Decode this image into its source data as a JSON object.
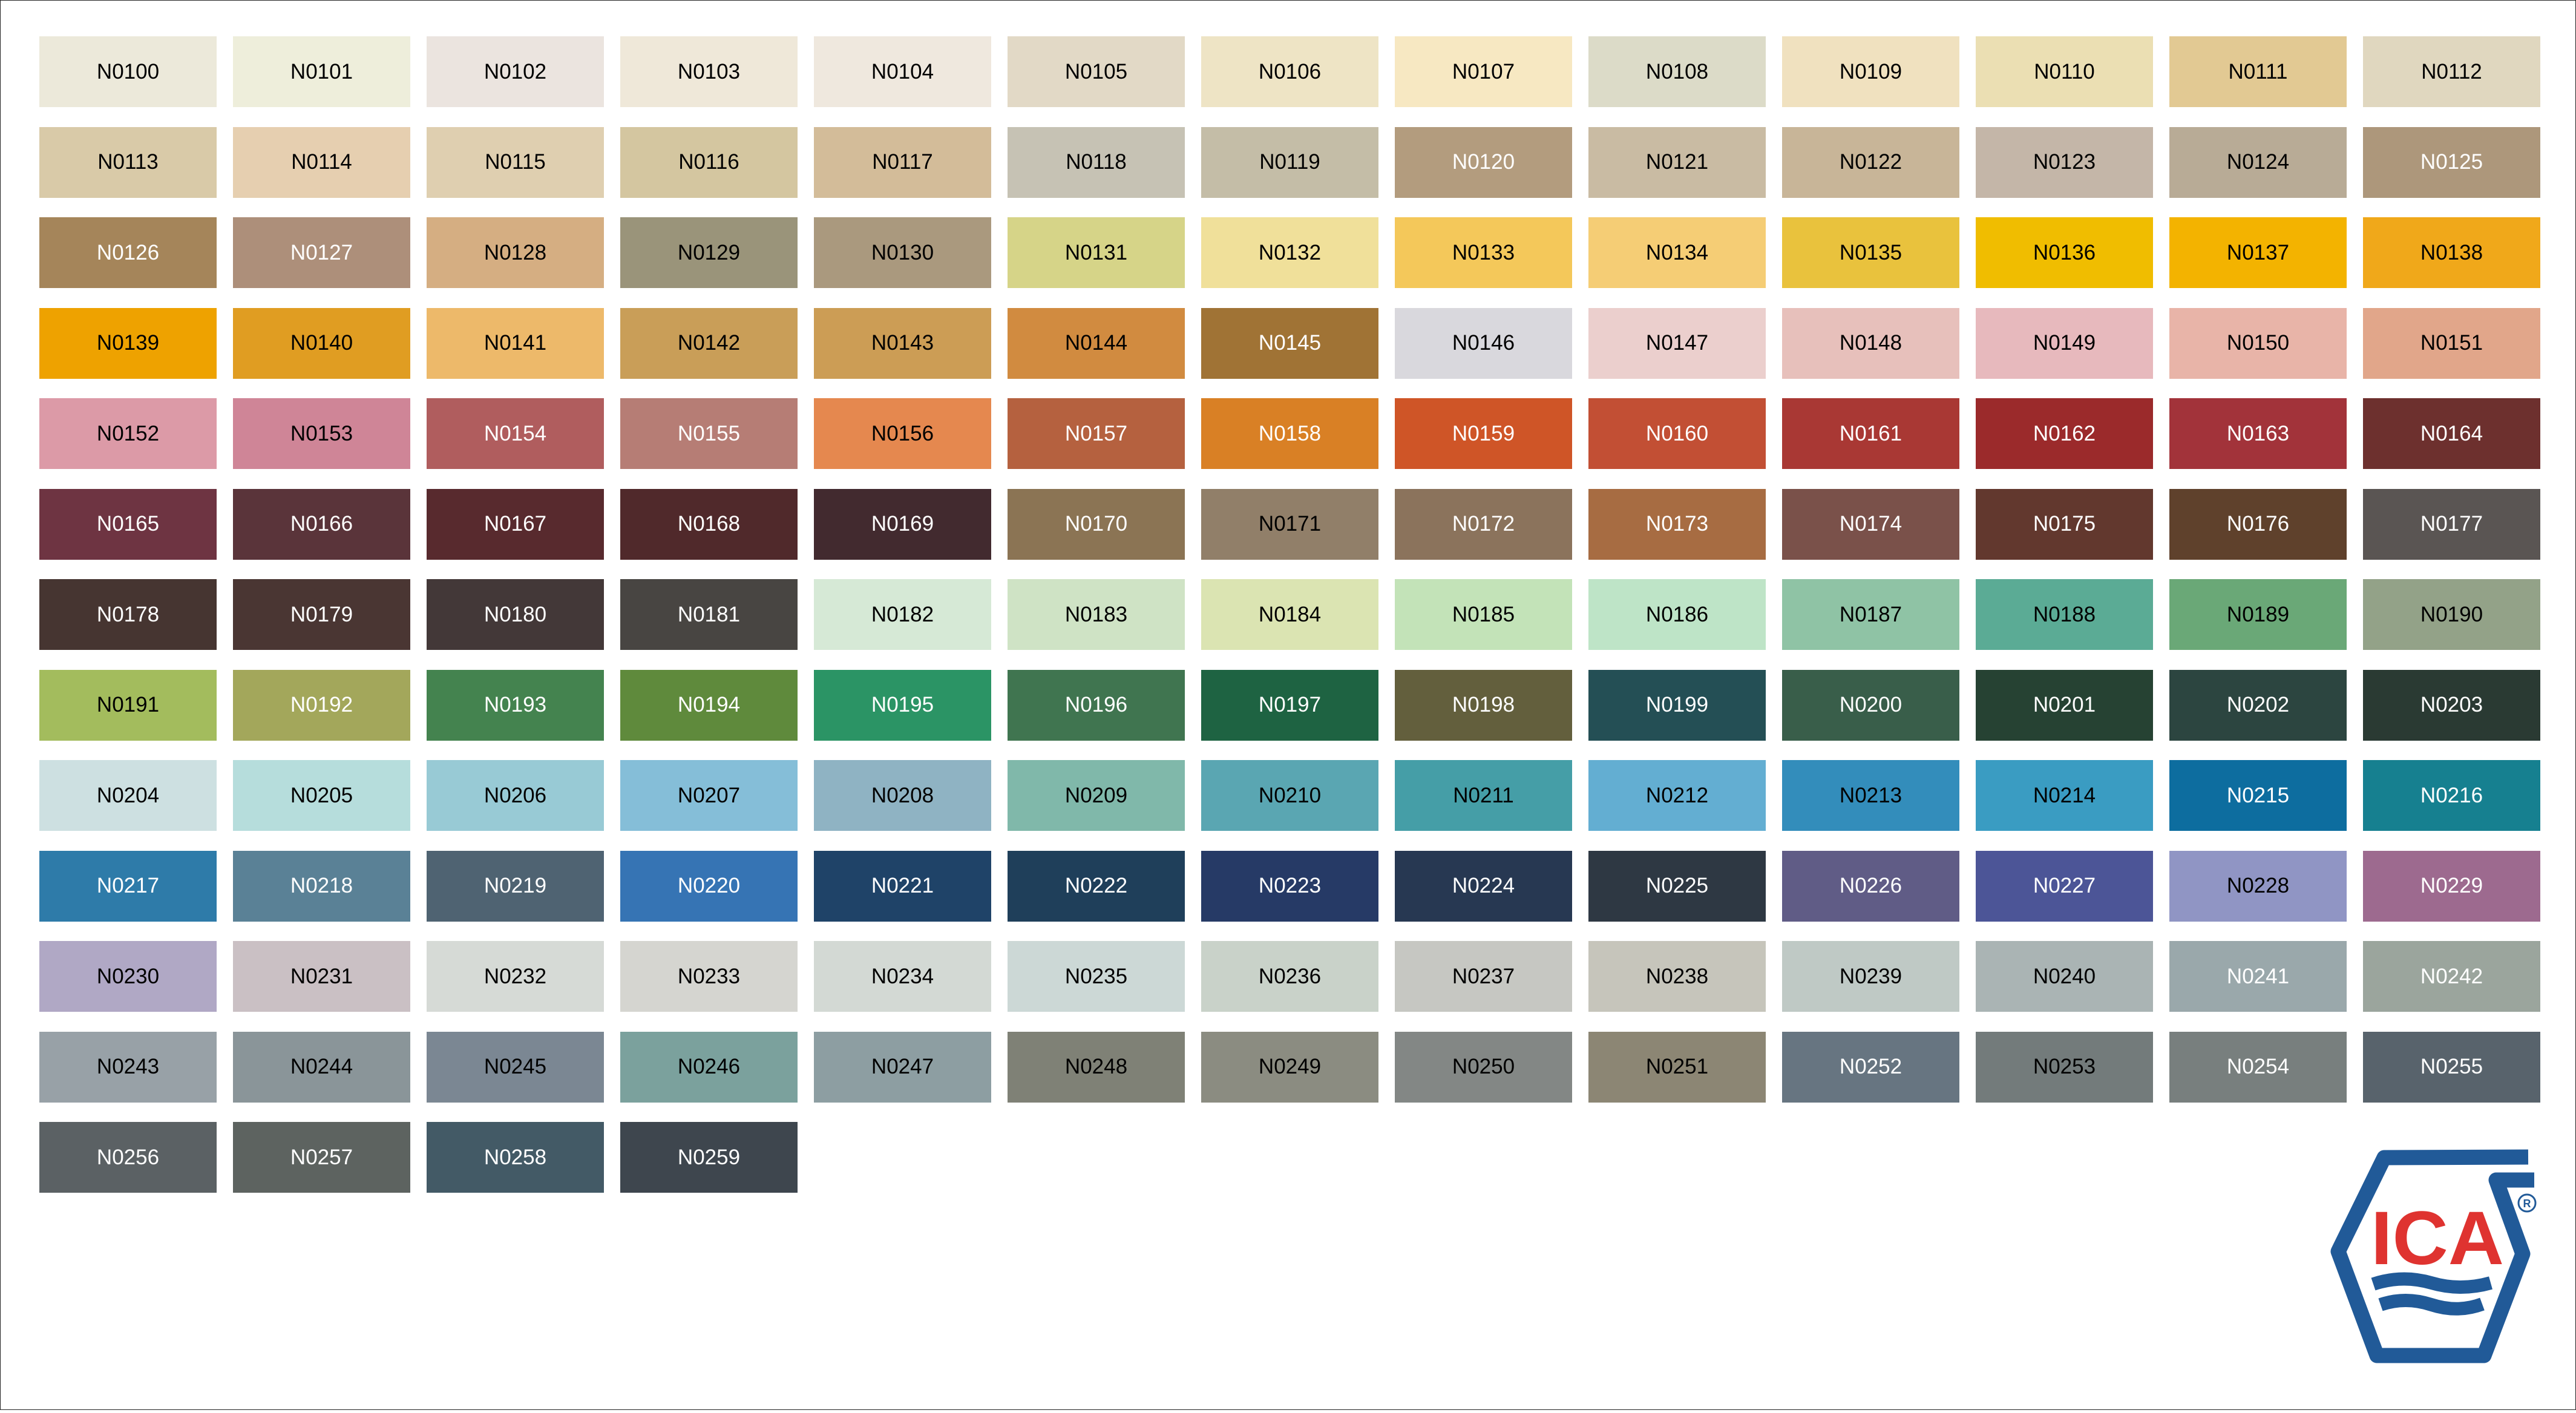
{
  "swatches": [
    {
      "code": "N0100",
      "color": "#ece9da",
      "text": "#000000"
    },
    {
      "code": "N0101",
      "color": "#eeeedb",
      "text": "#000000"
    },
    {
      "code": "N0102",
      "color": "#ebe4df",
      "text": "#000000"
    },
    {
      "code": "N0103",
      "color": "#efe8d9",
      "text": "#000000"
    },
    {
      "code": "N0104",
      "color": "#efe8de",
      "text": "#000000"
    },
    {
      "code": "N0105",
      "color": "#e2d9c6",
      "text": "#000000"
    },
    {
      "code": "N0106",
      "color": "#eee4c5",
      "text": "#000000"
    },
    {
      "code": "N0107",
      "color": "#f7e8c2",
      "text": "#000000"
    },
    {
      "code": "N0108",
      "color": "#dcdbc8",
      "text": "#000000"
    },
    {
      "code": "N0109",
      "color": "#f0e1bf",
      "text": "#000000"
    },
    {
      "code": "N0110",
      "color": "#ebdfb3",
      "text": "#000000"
    },
    {
      "code": "N0111",
      "color": "#e2c993",
      "text": "#000000"
    },
    {
      "code": "N0112",
      "color": "#e0d7bf",
      "text": "#000000"
    },
    {
      "code": "N0113",
      "color": "#d9caa8",
      "text": "#000000"
    },
    {
      "code": "N0114",
      "color": "#e6cfb0",
      "text": "#000000"
    },
    {
      "code": "N0115",
      "color": "#dfcfb0",
      "text": "#000000"
    },
    {
      "code": "N0116",
      "color": "#d4c6a0",
      "text": "#000000"
    },
    {
      "code": "N0117",
      "color": "#d3bc99",
      "text": "#000000"
    },
    {
      "code": "N0118",
      "color": "#c6c2b4",
      "text": "#000000"
    },
    {
      "code": "N0119",
      "color": "#c4bda7",
      "text": "#000000"
    },
    {
      "code": "N0120",
      "color": "#b39c7e",
      "text": "#ffffff"
    },
    {
      "code": "N0121",
      "color": "#c9bba3",
      "text": "#000000"
    },
    {
      "code": "N0122",
      "color": "#c8b598",
      "text": "#000000"
    },
    {
      "code": "N0123",
      "color": "#c4b6a8",
      "text": "#000000"
    },
    {
      "code": "N0124",
      "color": "#b8ab96",
      "text": "#000000"
    },
    {
      "code": "N0125",
      "color": "#ad977b",
      "text": "#ffffff"
    },
    {
      "code": "N0126",
      "color": "#a5855a",
      "text": "#ffffff"
    },
    {
      "code": "N0127",
      "color": "#ad8f7a",
      "text": "#ffffff"
    },
    {
      "code": "N0128",
      "color": "#d5ae82",
      "text": "#000000"
    },
    {
      "code": "N0129",
      "color": "#9a947a",
      "text": "#000000"
    },
    {
      "code": "N0130",
      "color": "#aa997e",
      "text": "#000000"
    },
    {
      "code": "N0131",
      "color": "#d6d488",
      "text": "#000000"
    },
    {
      "code": "N0132",
      "color": "#f0e09a",
      "text": "#000000"
    },
    {
      "code": "N0133",
      "color": "#f4c85a",
      "text": "#000000"
    },
    {
      "code": "N0134",
      "color": "#f5cd75",
      "text": "#000000"
    },
    {
      "code": "N0135",
      "color": "#e9c23d",
      "text": "#000000"
    },
    {
      "code": "N0136",
      "color": "#f0bd00",
      "text": "#000000"
    },
    {
      "code": "N0137",
      "color": "#f3b300",
      "text": "#000000"
    },
    {
      "code": "N0138",
      "color": "#f0a81a",
      "text": "#000000"
    },
    {
      "code": "N0139",
      "color": "#eea200",
      "text": "#000000"
    },
    {
      "code": "N0140",
      "color": "#e09d22",
      "text": "#000000"
    },
    {
      "code": "N0141",
      "color": "#edb96a",
      "text": "#000000"
    },
    {
      "code": "N0142",
      "color": "#c99e58",
      "text": "#000000"
    },
    {
      "code": "N0143",
      "color": "#cc9d55",
      "text": "#000000"
    },
    {
      "code": "N0144",
      "color": "#d18b40",
      "text": "#000000"
    },
    {
      "code": "N0145",
      "color": "#a07335",
      "text": "#ffffff"
    },
    {
      "code": "N0146",
      "color": "#d9d8dd",
      "text": "#000000"
    },
    {
      "code": "N0147",
      "color": "#ebcfcd",
      "text": "#000000"
    },
    {
      "code": "N0148",
      "color": "#e7c0bb",
      "text": "#000000"
    },
    {
      "code": "N0149",
      "color": "#e7b9bd",
      "text": "#000000"
    },
    {
      "code": "N0150",
      "color": "#e8b4a8",
      "text": "#000000"
    },
    {
      "code": "N0151",
      "color": "#e1a68a",
      "text": "#000000"
    },
    {
      "code": "N0152",
      "color": "#dc9aa7",
      "text": "#000000"
    },
    {
      "code": "N0153",
      "color": "#cf8597",
      "text": "#000000"
    },
    {
      "code": "N0154",
      "color": "#b05d5e",
      "text": "#ffffff"
    },
    {
      "code": "N0155",
      "color": "#b67d75",
      "text": "#ffffff"
    },
    {
      "code": "N0156",
      "color": "#e5884f",
      "text": "#000000"
    },
    {
      "code": "N0157",
      "color": "#b5613f",
      "text": "#ffffff"
    },
    {
      "code": "N0158",
      "color": "#d98025",
      "text": "#ffffff"
    },
    {
      "code": "N0159",
      "color": "#cf5527",
      "text": "#ffffff"
    },
    {
      "code": "N0160",
      "color": "#c24f34",
      "text": "#ffffff"
    },
    {
      "code": "N0161",
      "color": "#a93834",
      "text": "#ffffff"
    },
    {
      "code": "N0162",
      "color": "#9b2a2b",
      "text": "#ffffff"
    },
    {
      "code": "N0163",
      "color": "#a2333a",
      "text": "#ffffff"
    },
    {
      "code": "N0164",
      "color": "#6d302e",
      "text": "#ffffff"
    },
    {
      "code": "N0165",
      "color": "#6e3442",
      "text": "#ffffff"
    },
    {
      "code": "N0166",
      "color": "#5a343a",
      "text": "#ffffff"
    },
    {
      "code": "N0167",
      "color": "#582a2e",
      "text": "#ffffff"
    },
    {
      "code": "N0168",
      "color": "#50292b",
      "text": "#ffffff"
    },
    {
      "code": "N0169",
      "color": "#422a2f",
      "text": "#ffffff"
    },
    {
      "code": "N0170",
      "color": "#8b7454",
      "text": "#ffffff"
    },
    {
      "code": "N0171",
      "color": "#917f69",
      "text": "#000000"
    },
    {
      "code": "N0172",
      "color": "#8b735c",
      "text": "#ffffff"
    },
    {
      "code": "N0173",
      "color": "#a76c42",
      "text": "#ffffff"
    },
    {
      "code": "N0174",
      "color": "#7a514a",
      "text": "#ffffff"
    },
    {
      "code": "N0175",
      "color": "#62382e",
      "text": "#ffffff"
    },
    {
      "code": "N0176",
      "color": "#5f412c",
      "text": "#ffffff"
    },
    {
      "code": "N0177",
      "color": "#5a5553",
      "text": "#ffffff"
    },
    {
      "code": "N0178",
      "color": "#463531",
      "text": "#ffffff"
    },
    {
      "code": "N0179",
      "color": "#4a3633",
      "text": "#ffffff"
    },
    {
      "code": "N0180",
      "color": "#433838",
      "text": "#ffffff"
    },
    {
      "code": "N0181",
      "color": "#484542",
      "text": "#ffffff"
    },
    {
      "code": "N0182",
      "color": "#d6e9d6",
      "text": "#000000"
    },
    {
      "code": "N0183",
      "color": "#cfe3c5",
      "text": "#000000"
    },
    {
      "code": "N0184",
      "color": "#dbe4b2",
      "text": "#000000"
    },
    {
      "code": "N0185",
      "color": "#c3e3b8",
      "text": "#000000"
    },
    {
      "code": "N0186",
      "color": "#bee4c7",
      "text": "#000000"
    },
    {
      "code": "N0187",
      "color": "#8fc3a5",
      "text": "#000000"
    },
    {
      "code": "N0188",
      "color": "#5bab95",
      "text": "#000000"
    },
    {
      "code": "N0189",
      "color": "#6aa877",
      "text": "#000000"
    },
    {
      "code": "N0190",
      "color": "#93a288",
      "text": "#000000"
    },
    {
      "code": "N0191",
      "color": "#a3bc5d",
      "text": "#000000"
    },
    {
      "code": "N0192",
      "color": "#a3a75b",
      "text": "#ffffff"
    },
    {
      "code": "N0193",
      "color": "#44834f",
      "text": "#ffffff"
    },
    {
      "code": "N0194",
      "color": "#5f8a3c",
      "text": "#ffffff"
    },
    {
      "code": "N0195",
      "color": "#2b9465",
      "text": "#ffffff"
    },
    {
      "code": "N0196",
      "color": "#407550",
      "text": "#ffffff"
    },
    {
      "code": "N0197",
      "color": "#1e6342",
      "text": "#ffffff"
    },
    {
      "code": "N0198",
      "color": "#635f3d",
      "text": "#ffffff"
    },
    {
      "code": "N0199",
      "color": "#244f55",
      "text": "#ffffff"
    },
    {
      "code": "N0200",
      "color": "#395e4a",
      "text": "#ffffff"
    },
    {
      "code": "N0201",
      "color": "#264233",
      "text": "#ffffff"
    },
    {
      "code": "N0202",
      "color": "#2c4540",
      "text": "#ffffff"
    },
    {
      "code": "N0203",
      "color": "#2a3a33",
      "text": "#ffffff"
    },
    {
      "code": "N0204",
      "color": "#cde0e1",
      "text": "#000000"
    },
    {
      "code": "N0205",
      "color": "#b6dddc",
      "text": "#000000"
    },
    {
      "code": "N0206",
      "color": "#98cad5",
      "text": "#000000"
    },
    {
      "code": "N0207",
      "color": "#85bed8",
      "text": "#000000"
    },
    {
      "code": "N0208",
      "color": "#8fb3c3",
      "text": "#000000"
    },
    {
      "code": "N0209",
      "color": "#80b8aa",
      "text": "#000000"
    },
    {
      "code": "N0210",
      "color": "#5aa6b2",
      "text": "#000000"
    },
    {
      "code": "N0211",
      "color": "#459ea7",
      "text": "#000000"
    },
    {
      "code": "N0212",
      "color": "#63aed2",
      "text": "#000000"
    },
    {
      "code": "N0213",
      "color": "#338dbb",
      "text": "#000000"
    },
    {
      "code": "N0214",
      "color": "#3a9cc2",
      "text": "#000000"
    },
    {
      "code": "N0215",
      "color": "#0d6d9f",
      "text": "#ffffff"
    },
    {
      "code": "N0216",
      "color": "#168090",
      "text": "#ffffff"
    },
    {
      "code": "N0217",
      "color": "#2e7ba9",
      "text": "#ffffff"
    },
    {
      "code": "N0218",
      "color": "#5a8196",
      "text": "#ffffff"
    },
    {
      "code": "N0219",
      "color": "#4f6372",
      "text": "#ffffff"
    },
    {
      "code": "N0220",
      "color": "#3674b4",
      "text": "#ffffff"
    },
    {
      "code": "N0221",
      "color": "#1f4368",
      "text": "#ffffff"
    },
    {
      "code": "N0222",
      "color": "#1f3f5a",
      "text": "#ffffff"
    },
    {
      "code": "N0223",
      "color": "#263a66",
      "text": "#ffffff"
    },
    {
      "code": "N0224",
      "color": "#273852",
      "text": "#ffffff"
    },
    {
      "code": "N0225",
      "color": "#2e3843",
      "text": "#ffffff"
    },
    {
      "code": "N0226",
      "color": "#605c86",
      "text": "#ffffff"
    },
    {
      "code": "N0227",
      "color": "#4c5597",
      "text": "#ffffff"
    },
    {
      "code": "N0228",
      "color": "#9095c4",
      "text": "#000000"
    },
    {
      "code": "N0229",
      "color": "#9d6a8f",
      "text": "#ffffff"
    },
    {
      "code": "N0230",
      "color": "#b0a8c5",
      "text": "#000000"
    },
    {
      "code": "N0231",
      "color": "#cac0c4",
      "text": "#000000"
    },
    {
      "code": "N0232",
      "color": "#d6dad6",
      "text": "#000000"
    },
    {
      "code": "N0233",
      "color": "#d5d5d0",
      "text": "#000000"
    },
    {
      "code": "N0234",
      "color": "#d3d9d4",
      "text": "#000000"
    },
    {
      "code": "N0235",
      "color": "#ccd8d6",
      "text": "#000000"
    },
    {
      "code": "N0236",
      "color": "#c9d2c9",
      "text": "#000000"
    },
    {
      "code": "N0237",
      "color": "#c6c7c2",
      "text": "#000000"
    },
    {
      "code": "N0238",
      "color": "#c6c5bb",
      "text": "#000000"
    },
    {
      "code": "N0239",
      "color": "#bfc9c5",
      "text": "#000000"
    },
    {
      "code": "N0240",
      "color": "#aab4b4",
      "text": "#000000"
    },
    {
      "code": "N0241",
      "color": "#9aa8ab",
      "text": "#ffffff"
    },
    {
      "code": "N0242",
      "color": "#9ba59d",
      "text": "#ffffff"
    },
    {
      "code": "N0243",
      "color": "#98a1a7",
      "text": "#000000"
    },
    {
      "code": "N0244",
      "color": "#8a9599",
      "text": "#000000"
    },
    {
      "code": "N0245",
      "color": "#7b8793",
      "text": "#000000"
    },
    {
      "code": "N0246",
      "color": "#7ba19d",
      "text": "#000000"
    },
    {
      "code": "N0247",
      "color": "#8d9ea2",
      "text": "#000000"
    },
    {
      "code": "N0248",
      "color": "#7f8176",
      "text": "#000000"
    },
    {
      "code": "N0249",
      "color": "#8b8c81",
      "text": "#000000"
    },
    {
      "code": "N0250",
      "color": "#838785",
      "text": "#000000"
    },
    {
      "code": "N0251",
      "color": "#8c8674",
      "text": "#000000"
    },
    {
      "code": "N0252",
      "color": "#677581",
      "text": "#ffffff"
    },
    {
      "code": "N0253",
      "color": "#737b7b",
      "text": "#000000"
    },
    {
      "code": "N0254",
      "color": "#787f7e",
      "text": "#ffffff"
    },
    {
      "code": "N0255",
      "color": "#58636c",
      "text": "#ffffff"
    },
    {
      "code": "N0256",
      "color": "#5b6164",
      "text": "#ffffff"
    },
    {
      "code": "N0257",
      "color": "#5d6360",
      "text": "#ffffff"
    },
    {
      "code": "N0258",
      "color": "#435a66",
      "text": "#ffffff"
    },
    {
      "code": "N0259",
      "color": "#3e464e",
      "text": "#ffffff"
    }
  ],
  "logo": {
    "text": "ICA",
    "registered": "®",
    "blue": "#215a98",
    "red": "#df3330"
  }
}
